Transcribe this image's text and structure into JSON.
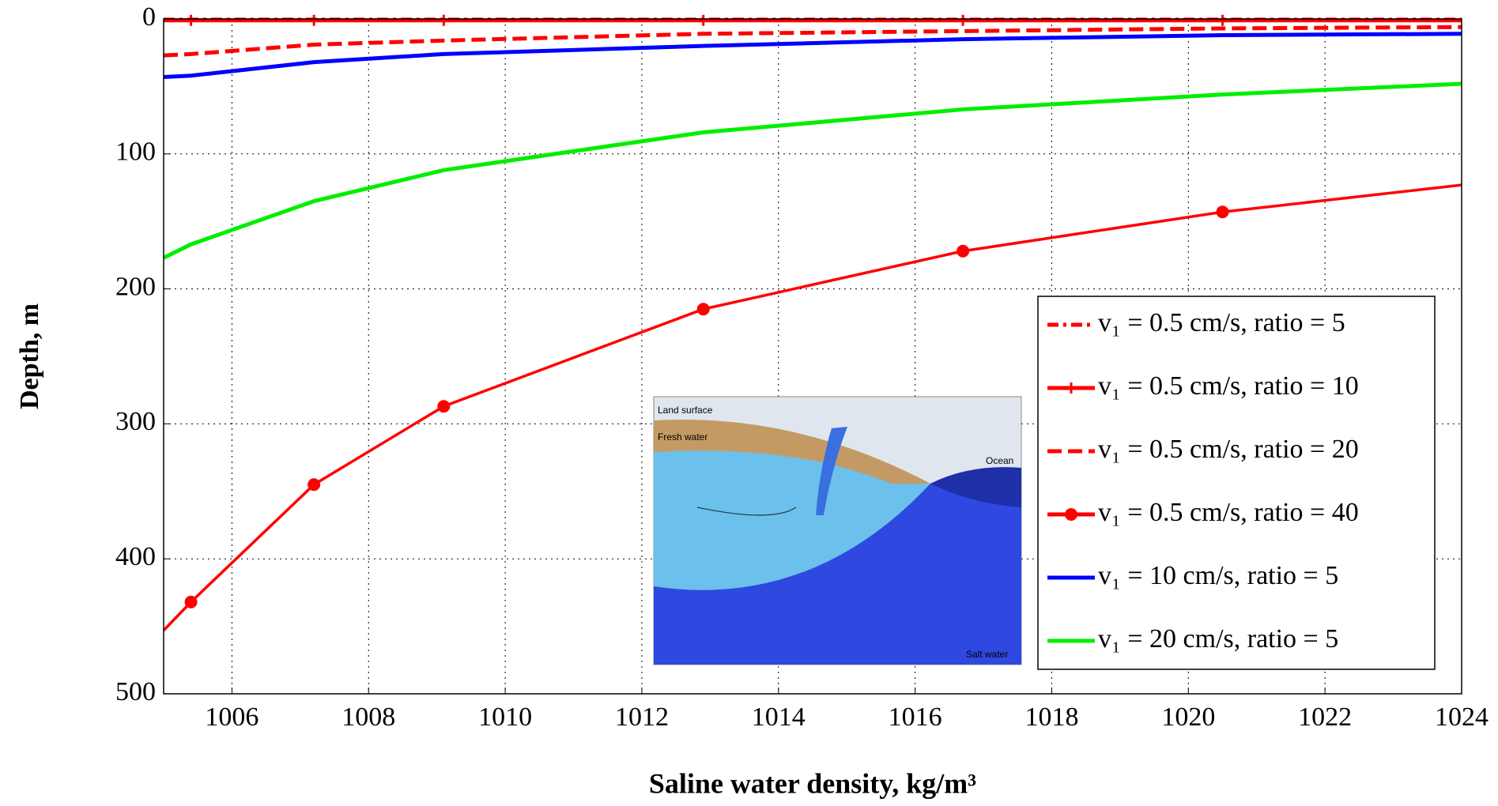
{
  "chart_data": {
    "type": "line",
    "xlabel": "Saline water density, kg/m³",
    "ylabel": "Depth, m",
    "x": [
      1005,
      1005.4,
      1007.2,
      1009.1,
      1012.9,
      1016.7,
      1020.5,
      1024
    ],
    "series": [
      {
        "name": "v₁ = 0.5 cm/s, ratio = 5",
        "color": "#ff0000",
        "style": "dashdot",
        "marker": "none",
        "values": [
          0.5,
          0.5,
          0.5,
          0.5,
          0.5,
          0.5,
          0.5,
          0.5
        ]
      },
      {
        "name": "v₁ = 0.5 cm/s, ratio = 10",
        "color": "#ff0000",
        "style": "solid",
        "marker": "plus",
        "values": [
          1,
          1,
          1,
          1,
          1,
          1,
          1,
          1
        ]
      },
      {
        "name": "v₁ = 0.5 cm/s, ratio = 20",
        "color": "#ff0000",
        "style": "dashed",
        "marker": "none",
        "values": [
          27,
          26,
          19,
          16,
          11,
          9,
          7,
          6
        ]
      },
      {
        "name": "v₁ = 0.5 cm/s, ratio = 40",
        "color": "#ff0000",
        "style": "solid",
        "marker": "circle",
        "values": [
          453,
          432,
          345,
          287,
          215,
          172,
          143,
          123
        ]
      },
      {
        "name": "v₁ = 10 cm/s, ratio = 5",
        "color": "#0000ff",
        "style": "solid",
        "marker": "none",
        "values": [
          43,
          42,
          32,
          26,
          20,
          15,
          12,
          11
        ]
      },
      {
        "name": "v₁ = 20 cm/s, ratio = 5",
        "color": "#00ee00",
        "style": "solid",
        "marker": "none",
        "values": [
          177,
          167,
          135,
          112,
          84,
          67,
          56,
          48
        ]
      }
    ],
    "xlim": [
      1005,
      1024
    ],
    "xticks": [
      1006,
      1008,
      1010,
      1012,
      1014,
      1016,
      1018,
      1020,
      1022,
      1024
    ],
    "ylim": [
      0,
      500
    ],
    "yticks": [
      0,
      100,
      200,
      300,
      400,
      500
    ],
    "y_inverted": true,
    "grid": true,
    "legend": "lower right",
    "inset": {
      "labels": [
        "Land surface",
        "Fresh water",
        "Ocean",
        "Salt water"
      ]
    }
  }
}
